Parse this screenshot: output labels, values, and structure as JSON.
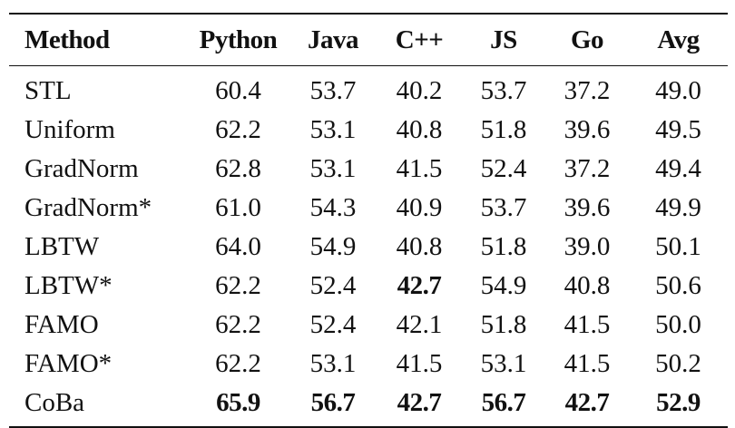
{
  "table": {
    "headers": [
      "Method",
      "Python",
      "Java",
      "C++",
      "JS",
      "Go",
      "Avg"
    ],
    "rows": [
      {
        "method": "STL",
        "values": [
          "60.4",
          "53.7",
          "40.2",
          "53.7",
          "37.2",
          "49.0"
        ]
      },
      {
        "method": "Uniform",
        "values": [
          "62.2",
          "53.1",
          "40.8",
          "51.8",
          "39.6",
          "49.5"
        ]
      },
      {
        "method": "GradNorm",
        "values": [
          "62.8",
          "53.1",
          "41.5",
          "52.4",
          "37.2",
          "49.4"
        ]
      },
      {
        "method": "GradNorm*",
        "values": [
          "61.0",
          "54.3",
          "40.9",
          "53.7",
          "39.6",
          "49.9"
        ]
      },
      {
        "method": "LBTW",
        "values": [
          "64.0",
          "54.9",
          "40.8",
          "51.8",
          "39.0",
          "50.1"
        ]
      },
      {
        "method": "LBTW*",
        "values": [
          "62.2",
          "52.4",
          "42.7",
          "54.9",
          "40.8",
          "50.6"
        ]
      },
      {
        "method": "FAMO",
        "values": [
          "62.2",
          "52.4",
          "42.1",
          "51.8",
          "41.5",
          "50.0"
        ]
      },
      {
        "method": "FAMO*",
        "values": [
          "62.2",
          "53.1",
          "41.5",
          "53.1",
          "41.5",
          "50.2"
        ]
      },
      {
        "method": "CoBa",
        "values": [
          "65.9",
          "56.7",
          "42.7",
          "56.7",
          "42.7",
          "52.9"
        ]
      }
    ],
    "bold_cells": [
      {
        "row": 5,
        "col": 2
      },
      {
        "row": 8,
        "col": 0
      },
      {
        "row": 8,
        "col": 1
      },
      {
        "row": 8,
        "col": 2
      },
      {
        "row": 8,
        "col": 3
      },
      {
        "row": 8,
        "col": 4
      },
      {
        "row": 8,
        "col": 5
      }
    ]
  }
}
